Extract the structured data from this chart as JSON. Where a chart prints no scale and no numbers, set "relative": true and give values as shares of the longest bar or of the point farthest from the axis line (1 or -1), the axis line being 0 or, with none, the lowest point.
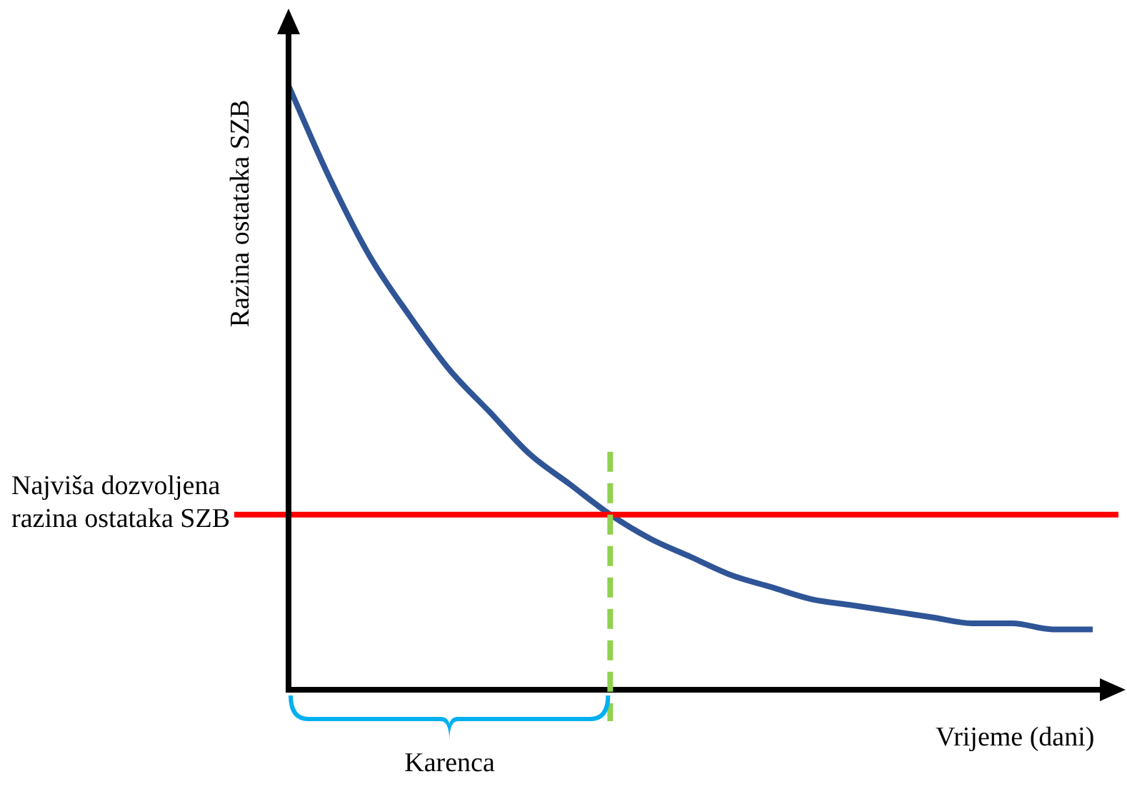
{
  "chart_data": {
    "type": "line",
    "relative": true,
    "ylabel": "Razina ostataka SZB",
    "xlabel": "Vrijeme (dani)",
    "categories": [
      null,
      null,
      null,
      null,
      null,
      null,
      null,
      null,
      null,
      null,
      null,
      null,
      null,
      null,
      null,
      null,
      null,
      null,
      null,
      null,
      null
    ],
    "values": [
      1.0,
      0.85,
      0.72,
      0.62,
      0.53,
      0.46,
      0.39,
      0.34,
      0.29,
      0.25,
      0.22,
      0.19,
      0.17,
      0.15,
      0.14,
      0.13,
      0.12,
      0.11,
      0.11,
      0.1,
      0.1
    ],
    "color": "#2f5597",
    "marker": "none",
    "line_style": "solid",
    "ref_lines": [
      {
        "axis": "y",
        "value": 0.29,
        "label": "Najviša dozvoljena razina ostataka SZB",
        "color": "#ff0000",
        "line_style": "solid"
      }
    ],
    "annotations": [
      "Karenca"
    ]
  }
}
